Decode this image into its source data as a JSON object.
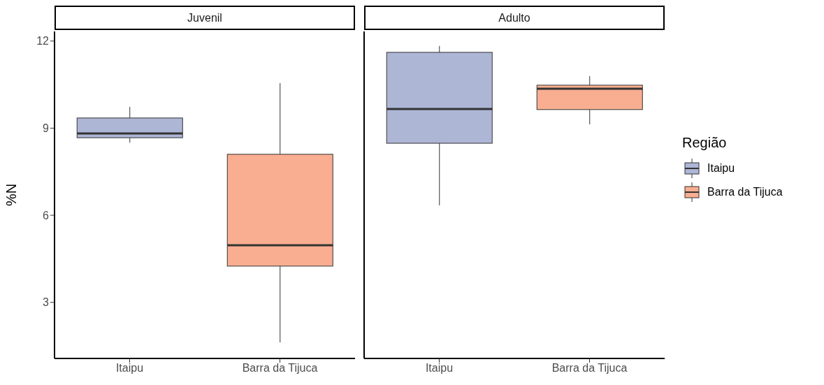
{
  "chart_data": [
    {
      "type": "box",
      "title": "Juvenil",
      "ylabel": "%N",
      "categories": [
        "Itaipu",
        "Barra da Tijuca"
      ],
      "ylim": [
        1.07,
        12.33
      ],
      "yticks": [
        3,
        6,
        9,
        12
      ],
      "legend": "right",
      "legend_title": "Região",
      "series": [
        {
          "name": "Itaipu",
          "color": "#aeb6d6",
          "boxes": [
            {
              "low": 8.5,
              "q1": 8.67,
              "median": 8.82,
              "q3": 9.35,
              "high": 9.73
            },
            null
          ]
        },
        {
          "name": "Barra da Tijuca",
          "color": "#f9ae91",
          "boxes": [
            null,
            {
              "low": 1.62,
              "q1": 4.25,
              "median": 4.97,
              "q3": 8.1,
              "high": 10.55
            }
          ]
        }
      ]
    },
    {
      "type": "box",
      "title": "Adulto",
      "categories": [
        "Itaipu",
        "Barra da Tijuca"
      ],
      "ylim": [
        1.07,
        12.33
      ],
      "yticks": [
        3,
        6,
        9,
        12
      ],
      "tick_labels": "x",
      "series": [
        {
          "color": "#aeb6d6",
          "boxes": [
            {
              "low": 6.34,
              "q1": 8.48,
              "median": 9.66,
              "q3": 11.61,
              "high": 11.83
            },
            null
          ]
        },
        {
          "color": "#f9ae91",
          "boxes": [
            null,
            {
              "low": 9.13,
              "q1": 9.64,
              "median": 10.36,
              "q3": 10.48,
              "high": 10.79
            }
          ]
        }
      ]
    }
  ]
}
